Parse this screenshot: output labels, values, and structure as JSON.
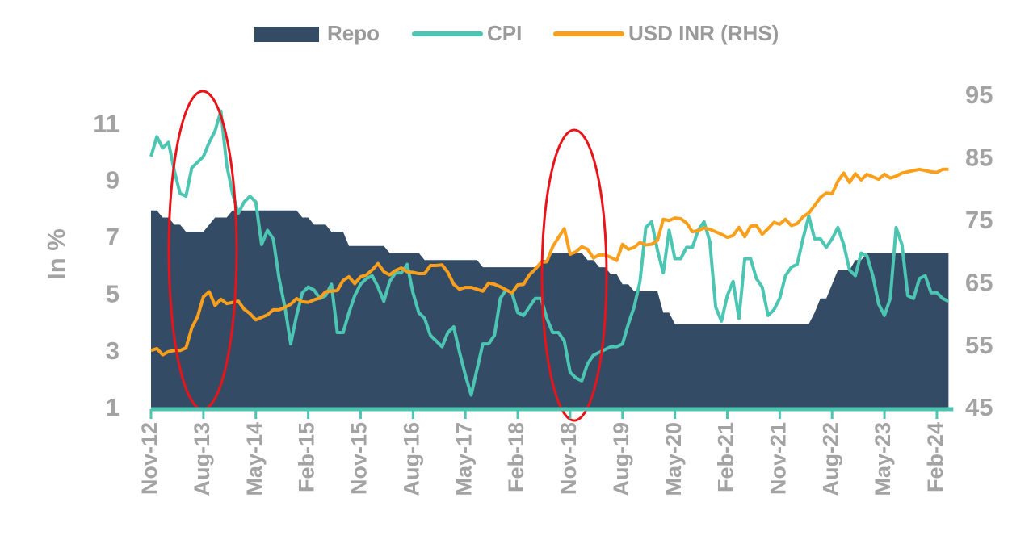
{
  "chart_data": {
    "type": "line",
    "ylabel": "In %",
    "categories": [
      "Nov-12",
      null,
      null,
      null,
      null,
      null,
      null,
      null,
      null,
      "Aug-13",
      null,
      null,
      null,
      null,
      null,
      null,
      null,
      null,
      "May-14",
      null,
      null,
      null,
      null,
      null,
      null,
      null,
      null,
      "Feb-15",
      null,
      null,
      null,
      null,
      null,
      null,
      null,
      null,
      "Nov-15",
      null,
      null,
      null,
      null,
      null,
      null,
      null,
      null,
      "Aug-16",
      null,
      null,
      null,
      null,
      null,
      null,
      null,
      null,
      "May-17",
      null,
      null,
      null,
      null,
      null,
      null,
      null,
      null,
      "Feb-18",
      null,
      null,
      null,
      null,
      null,
      null,
      null,
      null,
      "Nov-18",
      null,
      null,
      null,
      null,
      null,
      null,
      null,
      null,
      "Aug-19",
      null,
      null,
      null,
      null,
      null,
      null,
      null,
      null,
      "May-20",
      null,
      null,
      null,
      null,
      null,
      null,
      null,
      null,
      "Feb-21",
      null,
      null,
      null,
      null,
      null,
      null,
      null,
      null,
      "Nov-21",
      null,
      null,
      null,
      null,
      null,
      null,
      null,
      null,
      "Aug-22",
      null,
      null,
      null,
      null,
      null,
      null,
      null,
      null,
      "May-23",
      null,
      null,
      null,
      null,
      null,
      null,
      null,
      null,
      "Feb-24",
      null,
      null
    ],
    "ylim": [
      1,
      12
    ],
    "yticks": [
      1,
      3,
      5,
      7,
      9,
      11
    ],
    "y2lim": [
      45,
      95
    ],
    "y2ticks": [
      45,
      55,
      65,
      75,
      85,
      95
    ],
    "legend": "top",
    "series": [
      {
        "name": "Repo",
        "type": "area",
        "color": "#344b66",
        "values": [
          8,
          8,
          7.75,
          7.75,
          7.5,
          7.5,
          7.25,
          7.25,
          7.25,
          7.25,
          7.5,
          7.75,
          7.75,
          7.75,
          8,
          8,
          8,
          8,
          8,
          8,
          8,
          8,
          8,
          8,
          8,
          8,
          7.75,
          7.75,
          7.5,
          7.5,
          7.5,
          7.25,
          7.25,
          7.25,
          6.75,
          6.75,
          6.75,
          6.75,
          6.75,
          6.75,
          6.75,
          6.5,
          6.5,
          6.5,
          6.5,
          6.5,
          6.5,
          6.25,
          6.25,
          6.25,
          6.25,
          6.25,
          6.25,
          6.25,
          6.25,
          6.25,
          6.25,
          6,
          6,
          6,
          6,
          6,
          6,
          6,
          6,
          6,
          6,
          6.25,
          6.25,
          6.5,
          6.5,
          6.5,
          6.5,
          6.5,
          6.5,
          6.25,
          6.25,
          6,
          6,
          5.75,
          5.75,
          5.4,
          5.4,
          5.15,
          5.15,
          5.15,
          5.15,
          5.15,
          4.4,
          4.4,
          4,
          4,
          4,
          4,
          4,
          4,
          4,
          4,
          4,
          4,
          4,
          4,
          4,
          4,
          4,
          4,
          4,
          4,
          4,
          4,
          4,
          4,
          4,
          4,
          4.4,
          4.9,
          4.9,
          5.4,
          5.9,
          5.9,
          5.9,
          6.25,
          6.25,
          6.5,
          6.5,
          6.5,
          6.5,
          6.5,
          6.5,
          6.5,
          6.5,
          6.5,
          6.5,
          6.5,
          6.5,
          6.5,
          6.5,
          6.5
        ]
      },
      {
        "name": "CPI",
        "type": "line",
        "color": "#4cc5b2",
        "values": [
          9.9,
          10.6,
          10.2,
          10.4,
          9.4,
          8.6,
          8.5,
          9.5,
          9.7,
          9.9,
          10.4,
          10.8,
          11.5,
          9.6,
          8.6,
          7.9,
          8.3,
          8.5,
          8.3,
          6.8,
          7.3,
          7.0,
          5.6,
          4.6,
          3.3,
          4.3,
          5.1,
          5.3,
          5.2,
          4.9,
          5.0,
          5.4,
          3.7,
          3.7,
          4.4,
          5.0,
          5.4,
          5.6,
          5.7,
          5.3,
          4.8,
          5.5,
          5.8,
          5.8,
          6.1,
          5.1,
          4.4,
          4.2,
          3.6,
          3.4,
          3.2,
          3.7,
          3.9,
          3.0,
          2.2,
          1.5,
          2.4,
          3.3,
          3.3,
          3.6,
          4.9,
          5.2,
          5.1,
          4.4,
          4.3,
          4.6,
          4.9,
          4.9,
          4.2,
          3.7,
          3.7,
          3.4,
          2.3,
          2.1,
          2.0,
          2.6,
          2.9,
          3.0,
          3.1,
          3.2,
          3.2,
          3.3,
          4.0,
          4.6,
          5.5,
          7.4,
          7.6,
          6.6,
          5.8,
          7.3,
          6.3,
          6.3,
          6.7,
          6.7,
          7.3,
          7.6,
          6.9,
          4.6,
          4.1,
          5.0,
          5.5,
          4.2,
          6.3,
          6.3,
          5.6,
          5.3,
          4.3,
          4.5,
          4.9,
          5.7,
          6.0,
          6.1,
          7.0,
          7.8,
          7.0,
          7.0,
          6.7,
          7.0,
          7.4,
          6.8,
          5.9,
          5.7,
          6.5,
          6.4,
          5.7,
          4.7,
          4.3,
          4.9,
          7.4,
          6.8,
          5.0,
          4.9,
          5.6,
          5.7,
          5.1,
          5.1,
          4.9,
          4.8
        ]
      },
      {
        "name": "USD INR (RHS)",
        "type": "line",
        "axis": "y2",
        "color": "#f99f1b",
        "values": [
          54.4,
          54.7,
          53.7,
          54.2,
          54.4,
          54.4,
          54.8,
          58.0,
          59.8,
          63.0,
          63.8,
          61.6,
          62.6,
          61.9,
          62.1,
          62.3,
          61.0,
          60.3,
          59.3,
          59.7,
          60.1,
          60.9,
          60.9,
          61.3,
          61.8,
          62.7,
          62.2,
          62.1,
          62.5,
          62.8,
          63.8,
          63.9,
          64.0,
          65.6,
          66.2,
          65.1,
          66.2,
          66.5,
          67.3,
          68.3,
          67.0,
          66.5,
          67.2,
          67.6,
          67.0,
          66.9,
          66.7,
          66.7,
          68.0,
          68.0,
          68.1,
          66.9,
          65.0,
          64.2,
          64.5,
          64.5,
          64.2,
          63.9,
          65.2,
          65.0,
          64.6,
          64.1,
          63.6,
          64.9,
          65.0,
          66.5,
          67.4,
          68.5,
          68.6,
          71.0,
          72.5,
          73.9,
          69.8,
          70.2,
          71.0,
          70.6,
          69.2,
          69.7,
          69.7,
          69.3,
          68.8,
          71.4,
          70.6,
          70.9,
          71.7,
          71.3,
          71.4,
          72.0,
          75.4,
          75.2,
          75.6,
          75.5,
          74.8,
          73.4,
          73.6,
          74.0,
          73.8,
          73.4,
          73.0,
          72.5,
          72.8,
          74.1,
          72.6,
          74.3,
          74.4,
          73.0,
          73.9,
          74.9,
          74.6,
          75.4,
          74.4,
          74.7,
          75.8,
          76.4,
          77.6,
          78.9,
          79.6,
          79.5,
          81.5,
          82.8,
          81.3,
          82.7,
          81.7,
          82.6,
          82.2,
          81.8,
          82.6,
          82.0,
          82.3,
          82.8,
          83.0,
          83.2,
          83.4,
          83.2,
          83.0,
          82.9,
          83.4,
          83.4
        ]
      }
    ]
  }
}
